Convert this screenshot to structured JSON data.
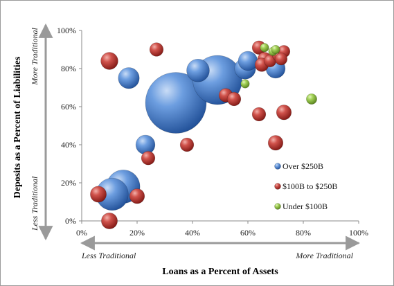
{
  "chart_data": {
    "type": "bubble",
    "xlabel": "Loans as a Percent of Assets",
    "ylabel": "Deposits as a Percent of Liabilities",
    "xlim": [
      0,
      100
    ],
    "ylim": [
      0,
      100
    ],
    "x_ticks": [
      "0%",
      "20%",
      "40%",
      "60%",
      "80%",
      "100%"
    ],
    "y_ticks": [
      "0%",
      "20%",
      "40%",
      "60%",
      "80%",
      "100%"
    ],
    "x_direction_labels": {
      "low": "Less Traditional",
      "high": "More Traditional"
    },
    "y_direction_labels": {
      "low": "Less Traditional",
      "high": "More Traditional"
    },
    "grid": false,
    "legend_position": "bottom-right",
    "series": [
      {
        "name": "Over $250B",
        "color": "#3f78c8",
        "points": [
          {
            "x": 34,
            "y": 62,
            "size": 100
          },
          {
            "x": 49,
            "y": 74,
            "size": 65
          },
          {
            "x": 15,
            "y": 18,
            "size": 30
          },
          {
            "x": 11,
            "y": 14,
            "size": 28
          },
          {
            "x": 42,
            "y": 79,
            "size": 14
          },
          {
            "x": 17,
            "y": 75,
            "size": 12
          },
          {
            "x": 59,
            "y": 80,
            "size": 12
          },
          {
            "x": 60,
            "y": 84,
            "size": 10
          },
          {
            "x": 70,
            "y": 80,
            "size": 10
          },
          {
            "x": 23,
            "y": 40,
            "size": 10
          }
        ]
      },
      {
        "name": "$100B to $250B",
        "color": "#c0302b",
        "points": [
          {
            "x": 10,
            "y": 84,
            "size": 8
          },
          {
            "x": 27,
            "y": 90,
            "size": 5
          },
          {
            "x": 6,
            "y": 14,
            "size": 7
          },
          {
            "x": 20,
            "y": 13,
            "size": 6
          },
          {
            "x": 10,
            "y": 0,
            "size": 7
          },
          {
            "x": 24,
            "y": 33,
            "size": 5
          },
          {
            "x": 38,
            "y": 40,
            "size": 5
          },
          {
            "x": 52,
            "y": 66,
            "size": 5
          },
          {
            "x": 55,
            "y": 64,
            "size": 5
          },
          {
            "x": 64,
            "y": 56,
            "size": 5
          },
          {
            "x": 73,
            "y": 57,
            "size": 6
          },
          {
            "x": 70,
            "y": 41,
            "size": 6
          },
          {
            "x": 64,
            "y": 91,
            "size": 5
          },
          {
            "x": 66,
            "y": 85,
            "size": 5
          },
          {
            "x": 65,
            "y": 82,
            "size": 5
          },
          {
            "x": 68,
            "y": 84,
            "size": 4
          },
          {
            "x": 71,
            "y": 87,
            "size": 4
          },
          {
            "x": 73,
            "y": 89,
            "size": 4
          },
          {
            "x": 72,
            "y": 85,
            "size": 4
          }
        ]
      },
      {
        "name": "Under $100B",
        "color": "#8cbf3f",
        "points": [
          {
            "x": 66,
            "y": 91,
            "size": 2
          },
          {
            "x": 69,
            "y": 89,
            "size": 2
          },
          {
            "x": 70,
            "y": 90,
            "size": 2
          },
          {
            "x": 59,
            "y": 72,
            "size": 2
          },
          {
            "x": 83,
            "y": 64,
            "size": 3
          }
        ]
      }
    ]
  }
}
